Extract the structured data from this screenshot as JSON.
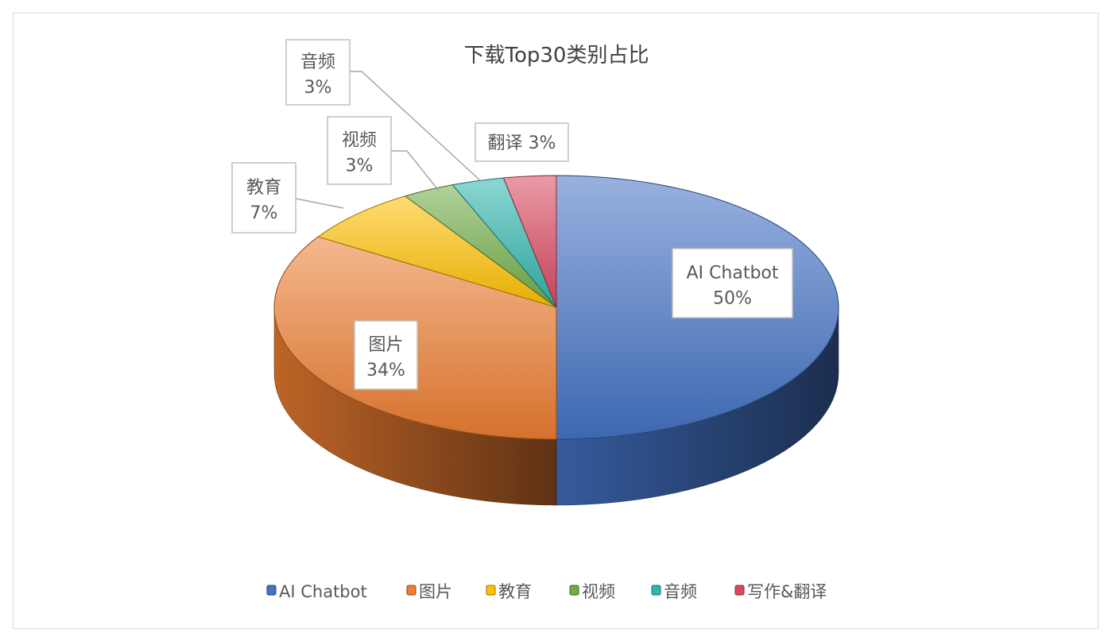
{
  "chart_data": {
    "type": "pie",
    "title": "下载Top30类别占比",
    "three_d": true,
    "categories": [
      "AI Chatbot",
      "图片",
      "教育",
      "视频",
      "音频",
      "写作&翻译"
    ],
    "values": [
      50,
      34,
      7,
      3,
      3,
      3
    ],
    "unit": "%",
    "colors": [
      "#4472c4",
      "#ed7d31",
      "#ffc000",
      "#70ad47",
      "#2fb5ad",
      "#d9485f"
    ],
    "data_labels": [
      {
        "name": "AI Chatbot",
        "value": "50%"
      },
      {
        "name": "图片",
        "value": "34%"
      },
      {
        "name": "教育",
        "value": "7%"
      },
      {
        "name": "视频",
        "value": "3%"
      },
      {
        "name": "音频",
        "value": "3%"
      },
      {
        "name": "翻译",
        "value": "3%"
      }
    ],
    "legend_position": "bottom"
  }
}
